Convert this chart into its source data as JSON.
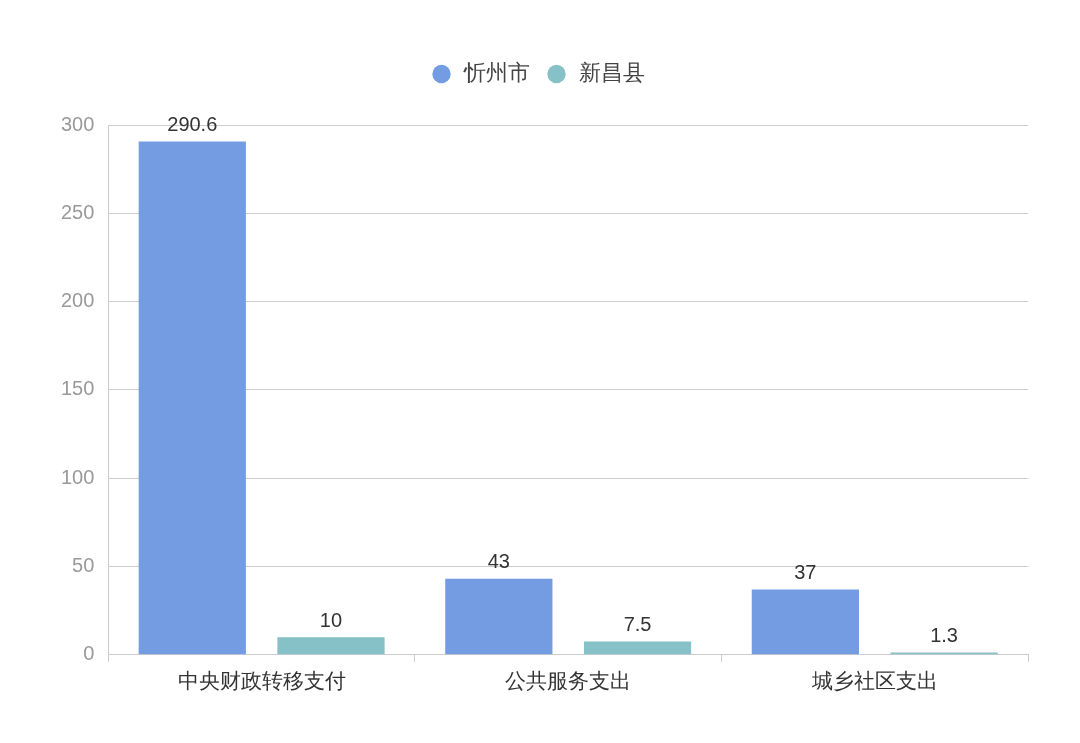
{
  "chart_data": {
    "type": "bar",
    "categories": [
      "中央财政转移支付",
      "公共服务支出",
      "城乡社区支出"
    ],
    "series": [
      {
        "name": "忻州市",
        "color": "#739ce2",
        "values": [
          290.6,
          43,
          37
        ]
      },
      {
        "name": "新昌县",
        "color": "#86c1c7",
        "values": [
          10,
          7.5,
          1.3
        ]
      }
    ],
    "ylim": [
      0,
      300
    ],
    "yticks": [
      0,
      50,
      100,
      150,
      200,
      250,
      300
    ],
    "grid": "y",
    "legend": "top",
    "data_labels": true
  }
}
